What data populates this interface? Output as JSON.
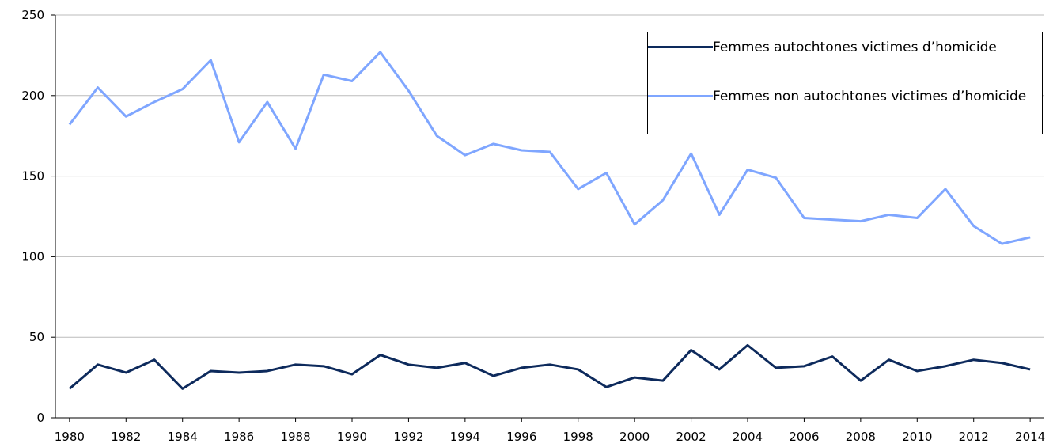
{
  "chart_data": {
    "type": "line",
    "x": [
      1980,
      1981,
      1982,
      1983,
      1984,
      1985,
      1986,
      1987,
      1988,
      1989,
      1990,
      1991,
      1992,
      1993,
      1994,
      1995,
      1996,
      1997,
      1998,
      1999,
      2000,
      2001,
      2002,
      2003,
      2004,
      2005,
      2006,
      2007,
      2008,
      2009,
      2010,
      2011,
      2012,
      2013,
      2014
    ],
    "series": [
      {
        "name": "Femmes autochtones victimes d’homicide",
        "color": "#0d2a5c",
        "values": [
          18,
          33,
          28,
          36,
          18,
          29,
          28,
          29,
          33,
          32,
          27,
          39,
          33,
          31,
          34,
          26,
          31,
          33,
          30,
          19,
          25,
          23,
          42,
          30,
          45,
          31,
          32,
          38,
          23,
          36,
          29,
          32,
          36,
          34,
          30
        ]
      },
      {
        "name": "Femmes non autochtones victimes d’homicide",
        "color": "#7fa6ff",
        "values": [
          182,
          205,
          187,
          196,
          204,
          222,
          171,
          196,
          167,
          213,
          209,
          227,
          203,
          175,
          163,
          170,
          166,
          165,
          142,
          152,
          120,
          135,
          164,
          126,
          154,
          149,
          124,
          123,
          122,
          126,
          124,
          142,
          119,
          108,
          112
        ]
      }
    ],
    "xlim": [
      1979.5,
      2014.5
    ],
    "xticks": [
      1980,
      1982,
      1984,
      1986,
      1988,
      1990,
      1992,
      1994,
      1996,
      1998,
      2000,
      2002,
      2004,
      2006,
      2008,
      2010,
      2012,
      2014
    ],
    "ylim": [
      0,
      250
    ],
    "yticks": [
      0,
      50,
      100,
      150,
      200,
      250
    ],
    "grid": true,
    "legend": "upper right"
  }
}
